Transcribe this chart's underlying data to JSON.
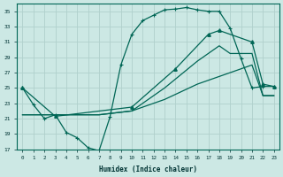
{
  "xlabel": "Humidex (Indice chaleur)",
  "bg_color": "#cce8e4",
  "grid_color": "#b0d0cc",
  "line_color": "#006655",
  "xlim": [
    -0.5,
    23.5
  ],
  "ylim": [
    17,
    36
  ],
  "xticks": [
    0,
    1,
    2,
    3,
    4,
    5,
    6,
    7,
    8,
    9,
    10,
    11,
    12,
    13,
    14,
    15,
    16,
    17,
    18,
    19,
    20,
    21,
    22,
    23
  ],
  "yticks": [
    17,
    19,
    21,
    23,
    25,
    27,
    29,
    31,
    33,
    35
  ],
  "curve1_x": [
    0,
    1,
    2,
    3,
    4,
    5,
    6,
    7,
    8,
    9,
    10,
    11,
    12,
    13,
    14,
    15,
    16,
    17,
    18,
    19,
    20,
    21,
    22,
    23
  ],
  "curve1_y": [
    25.0,
    22.8,
    21.0,
    21.5,
    19.2,
    18.5,
    17.2,
    16.8,
    21.2,
    28.0,
    32.0,
    33.8,
    34.5,
    35.2,
    35.3,
    35.5,
    35.2,
    35.0,
    35.0,
    32.8,
    28.8,
    25.0,
    25.2,
    25.2
  ],
  "curve2_x": [
    0,
    3,
    10,
    14,
    17,
    18,
    21,
    22,
    23
  ],
  "curve2_y": [
    25.0,
    21.3,
    22.5,
    27.5,
    32.0,
    32.5,
    31.0,
    25.5,
    25.2
  ],
  "curve3_x": [
    0,
    3,
    7,
    10,
    13,
    16,
    18,
    19,
    21,
    22,
    23
  ],
  "curve3_y": [
    21.5,
    21.5,
    21.5,
    22.0,
    25.0,
    28.5,
    30.5,
    29.5,
    29.5,
    24.0,
    24.0
  ],
  "curve4_x": [
    0,
    3,
    6,
    7,
    10,
    13,
    16,
    18,
    21,
    22,
    23
  ],
  "curve4_y": [
    21.5,
    21.5,
    21.5,
    21.5,
    22.0,
    23.5,
    25.5,
    26.5,
    28.0,
    24.0,
    24.0
  ]
}
